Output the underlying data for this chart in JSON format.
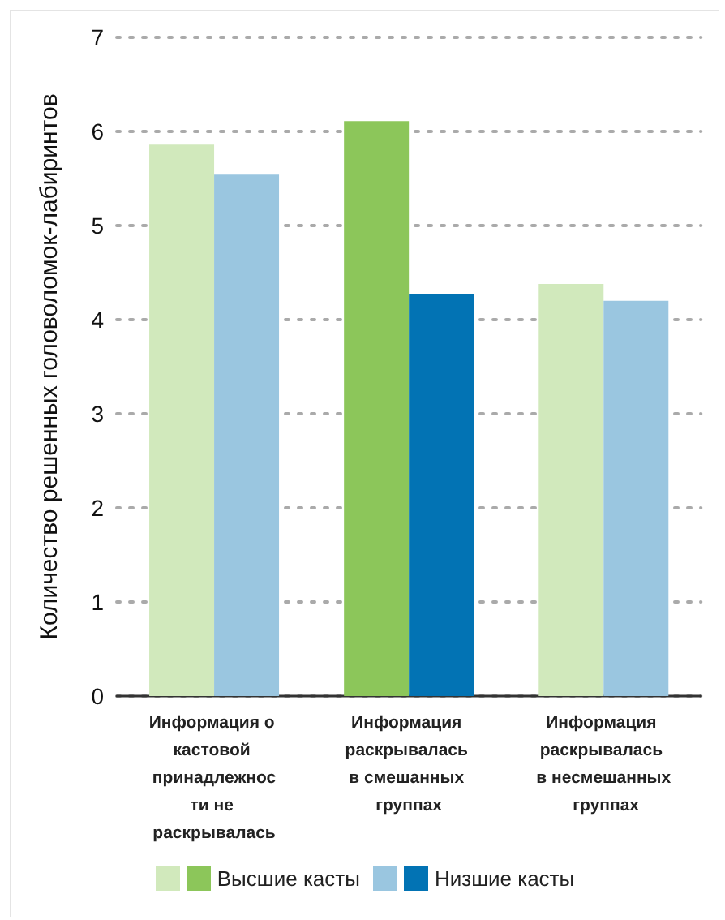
{
  "chart_data": {
    "type": "bar",
    "ylabel": "Количество решенных головоломок-лабиринтов",
    "categories": [
      "Информация о кастовой принадлежности не раскрывалась",
      "Информация раскрывалась в смешанных группах",
      "Информация раскрывалась в несмешанных группах"
    ],
    "series": [
      {
        "name": "Высшие касты",
        "colors": [
          "#d1e9bc",
          "#8cc65a",
          "#d1e9bc"
        ],
        "values": [
          5.86,
          6.11,
          4.38
        ]
      },
      {
        "name": "Низшие касты",
        "colors": [
          "#9ac6e0",
          "#0273b4",
          "#9ac6e0"
        ],
        "values": [
          5.54,
          4.27,
          4.2
        ]
      }
    ],
    "ylim": [
      0,
      7
    ],
    "yticks": [
      0,
      1,
      2,
      3,
      4,
      5,
      6,
      7
    ],
    "grid": "y",
    "legend": "bottom"
  }
}
